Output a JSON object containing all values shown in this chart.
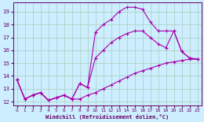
{
  "xlabel": "Windchill (Refroidissement éolien,°C)",
  "background_color": "#cceeff",
  "grid_color": "#aaccbb",
  "line_color": "#aa00aa",
  "ylim": [
    11.7,
    19.7
  ],
  "xlim": [
    -0.5,
    23.5
  ],
  "yticks": [
    12,
    13,
    14,
    15,
    16,
    17,
    18,
    19
  ],
  "xticks": [
    0,
    1,
    2,
    3,
    4,
    5,
    6,
    7,
    8,
    9,
    10,
    11,
    12,
    13,
    14,
    15,
    16,
    17,
    18,
    19,
    20,
    21,
    22,
    23
  ],
  "line1_x": [
    0,
    1,
    2,
    3,
    4,
    5,
    6,
    7,
    8,
    9,
    10,
    11,
    12,
    13,
    14,
    15,
    16,
    17,
    18,
    19,
    20,
    21,
    22,
    23
  ],
  "line1_y": [
    13.7,
    12.2,
    12.5,
    12.7,
    12.1,
    12.3,
    12.5,
    12.2,
    13.4,
    13.1,
    17.4,
    18.0,
    18.4,
    19.0,
    19.35,
    19.35,
    19.2,
    18.2,
    17.5,
    17.5,
    17.5,
    15.9,
    15.4,
    15.3
  ],
  "line2_x": [
    0,
    1,
    2,
    3,
    4,
    5,
    6,
    7,
    8,
    9,
    10,
    11,
    12,
    13,
    14,
    15,
    16,
    17,
    18,
    19,
    20,
    21,
    22,
    23
  ],
  "line2_y": [
    13.7,
    12.2,
    12.5,
    12.7,
    12.1,
    12.3,
    12.5,
    12.2,
    13.4,
    13.1,
    15.4,
    16.0,
    16.6,
    17.0,
    17.3,
    17.5,
    17.5,
    17.0,
    16.5,
    16.2,
    17.5,
    15.9,
    15.4,
    15.3
  ],
  "line3_x": [
    0,
    1,
    2,
    3,
    4,
    5,
    6,
    7,
    8,
    9,
    10,
    11,
    12,
    13,
    14,
    15,
    16,
    17,
    18,
    19,
    20,
    21,
    22,
    23
  ],
  "line3_y": [
    13.7,
    12.2,
    12.5,
    12.7,
    12.1,
    12.3,
    12.5,
    12.2,
    12.2,
    12.5,
    12.7,
    13.0,
    13.3,
    13.6,
    13.9,
    14.2,
    14.4,
    14.6,
    14.8,
    15.0,
    15.1,
    15.2,
    15.3,
    15.3
  ],
  "markersize": 3,
  "linewidth": 0.8
}
